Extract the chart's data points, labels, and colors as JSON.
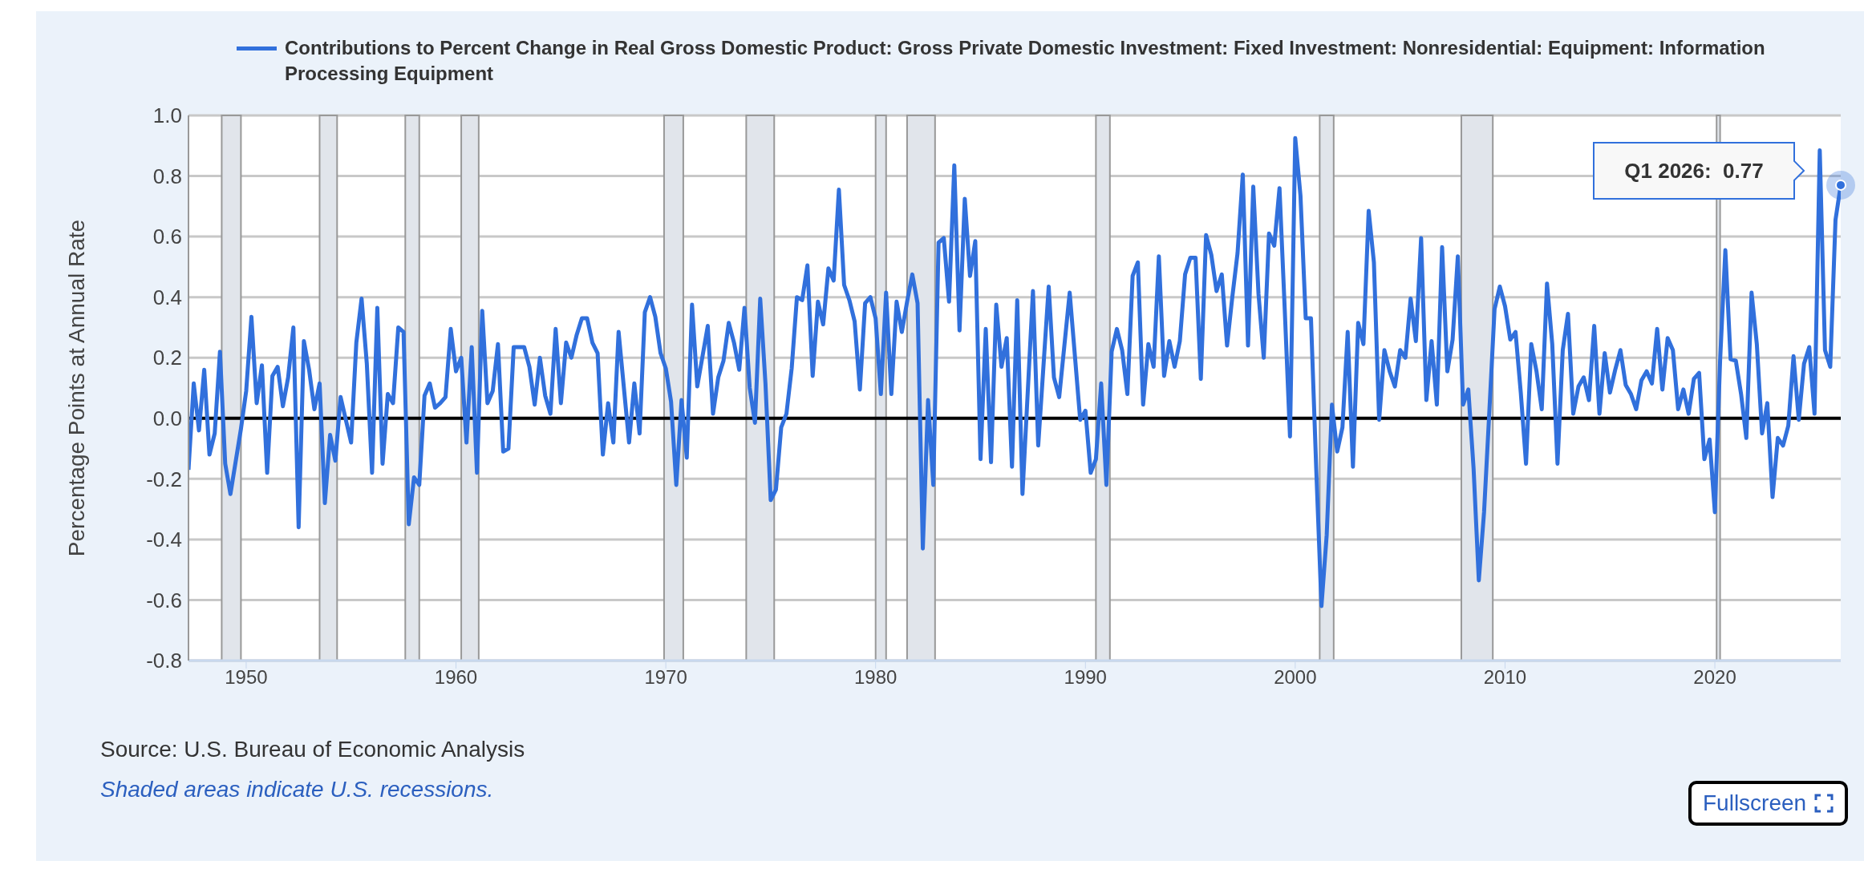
{
  "chart_data": {
    "type": "line",
    "ylabel": "Percentage Points at Annual Rate",
    "xlim": [
      "1947-04",
      "2026-01"
    ],
    "xticks": [
      "1950",
      "1960",
      "1970",
      "1980",
      "1990",
      "2000",
      "2010",
      "2020"
    ],
    "ylim": [
      -0.8,
      1.0
    ],
    "yticks": [
      {
        "value": -0.8,
        "label": "-0.8"
      },
      {
        "value": -0.6,
        "label": "-0.6"
      },
      {
        "value": -0.4,
        "label": "-0.4"
      },
      {
        "value": -0.2,
        "label": "-0.2"
      },
      {
        "value": 0,
        "label": "0.0"
      },
      {
        "value": 0.2,
        "label": "0.2"
      },
      {
        "value": 0.4,
        "label": "0.4"
      },
      {
        "value": 0.6,
        "label": "0.6"
      },
      {
        "value": 0.8,
        "label": "0.8"
      },
      {
        "value": 1.0,
        "label": "1.0"
      }
    ],
    "grid": "y",
    "legend": "top left",
    "ref_lines": [
      {
        "axis": "y",
        "value": 0,
        "color": "#000000"
      }
    ],
    "bands": [
      {
        "axis": "x",
        "from": "1948-11",
        "to": "1949-10",
        "color": "#e1e5eb"
      },
      {
        "axis": "x",
        "from": "1953-07",
        "to": "1954-05",
        "color": "#e1e5eb"
      },
      {
        "axis": "x",
        "from": "1957-08",
        "to": "1958-04",
        "color": "#e1e5eb"
      },
      {
        "axis": "x",
        "from": "1960-04",
        "to": "1961-02",
        "color": "#e1e5eb"
      },
      {
        "axis": "x",
        "from": "1969-12",
        "to": "1970-11",
        "color": "#e1e5eb"
      },
      {
        "axis": "x",
        "from": "1973-11",
        "to": "1975-03",
        "color": "#e1e5eb"
      },
      {
        "axis": "x",
        "from": "1980-01",
        "to": "1980-07",
        "color": "#e1e5eb"
      },
      {
        "axis": "x",
        "from": "1981-07",
        "to": "1982-11",
        "color": "#e1e5eb"
      },
      {
        "axis": "x",
        "from": "1990-07",
        "to": "1991-03",
        "color": "#e1e5eb"
      },
      {
        "axis": "x",
        "from": "2001-03",
        "to": "2001-11",
        "color": "#e1e5eb"
      },
      {
        "axis": "x",
        "from": "2007-12",
        "to": "2009-06",
        "color": "#e1e5eb"
      },
      {
        "axis": "x",
        "from": "2020-02",
        "to": "2020-04",
        "color": "#e1e5eb"
      }
    ],
    "annotations": [
      "Q1 2026:  0.77",
      "Source: U.S. Bureau of Economic Analysis",
      "Shaded areas indicate U.S. recessions.",
      "Fullscreen"
    ],
    "x": [
      "1947-04",
      "1947-07",
      "1947-10",
      "1948-01",
      "1948-04",
      "1948-07",
      "1948-10",
      "1949-01",
      "1949-04",
      "1949-10",
      "1950-01",
      "1950-04",
      "1950-07",
      "1950-10",
      "1951-01",
      "1951-04",
      "1951-07",
      "1951-10",
      "1952-01",
      "1952-04",
      "1952-07",
      "1952-10",
      "1953-01",
      "1953-04",
      "1953-07",
      "1953-10",
      "1954-01",
      "1954-04",
      "1954-07",
      "1955-01",
      "1955-04",
      "1955-07",
      "1955-10",
      "1956-01",
      "1956-04",
      "1956-07",
      "1956-10",
      "1957-01",
      "1957-04",
      "1957-07",
      "1957-10",
      "1958-01",
      "1958-04",
      "1958-07",
      "1958-10",
      "1959-01",
      "1959-04",
      "1959-07",
      "1959-10",
      "1960-01",
      "1960-04",
      "1960-07",
      "1960-10",
      "1961-01",
      "1961-04",
      "1961-07",
      "1961-10",
      "1962-01",
      "1962-04",
      "1962-07",
      "1962-10",
      "1963-04",
      "1963-07",
      "1963-10",
      "1964-01",
      "1964-04",
      "1964-07",
      "1964-10",
      "1965-01",
      "1965-04",
      "1965-07",
      "1965-10",
      "1966-01",
      "1966-04",
      "1966-07",
      "1966-10",
      "1967-01",
      "1967-04",
      "1967-07",
      "1967-10",
      "1968-04",
      "1968-07",
      "1968-10",
      "1969-01",
      "1969-04",
      "1969-07",
      "1969-10",
      "1970-01",
      "1970-04",
      "1970-07",
      "1970-10",
      "1971-01",
      "1971-04",
      "1971-07",
      "1972-01",
      "1972-04",
      "1972-07",
      "1972-10",
      "1973-01",
      "1973-04",
      "1973-07",
      "1973-10",
      "1974-01",
      "1974-04",
      "1974-07",
      "1974-10",
      "1975-01",
      "1975-04",
      "1975-07",
      "1975-10",
      "1976-01",
      "1976-04",
      "1976-07",
      "1976-10",
      "1977-01",
      "1977-04",
      "1977-07",
      "1977-10",
      "1978-01",
      "1978-04",
      "1978-07",
      "1978-10",
      "1979-01",
      "1979-04",
      "1979-07",
      "1979-10",
      "1980-01",
      "1980-04",
      "1980-07",
      "1980-10",
      "1981-01",
      "1981-04",
      "1981-07",
      "1981-10",
      "1982-01",
      "1982-04",
      "1982-07",
      "1982-10",
      "1983-01",
      "1983-04",
      "1983-07",
      "1983-10",
      "1984-01",
      "1984-04",
      "1984-07",
      "1984-10",
      "1985-01",
      "1985-04",
      "1985-07",
      "1985-10",
      "1986-01",
      "1986-04",
      "1986-07",
      "1986-10",
      "1987-01",
      "1987-07",
      "1987-10",
      "1988-04",
      "1988-07",
      "1988-10",
      "1989-04",
      "1989-10",
      "1990-01",
      "1990-04",
      "1990-07",
      "1990-10",
      "1991-01",
      "1991-04",
      "1991-07",
      "1991-10",
      "1992-01",
      "1992-04",
      "1992-07",
      "1992-10",
      "1993-01",
      "1993-04",
      "1993-07",
      "1993-10",
      "1994-01",
      "1994-04",
      "1994-07",
      "1994-10",
      "1995-01",
      "1995-04",
      "1995-07",
      "1995-10",
      "1996-01",
      "1996-04",
      "1996-07",
      "1996-10",
      "1997-01",
      "1997-04",
      "1997-07",
      "1997-10",
      "1998-01",
      "1998-04",
      "1998-07",
      "1998-10",
      "1999-01",
      "1999-04",
      "1999-07",
      "1999-10",
      "2000-01",
      "2000-04",
      "2000-07",
      "2000-10",
      "2001-01",
      "2001-04",
      "2001-07",
      "2001-10",
      "2002-01",
      "2002-04",
      "2002-07",
      "2002-10",
      "2003-01",
      "2003-04",
      "2003-07",
      "2003-10",
      "2004-01",
      "2004-04",
      "2004-07",
      "2004-10",
      "2005-01",
      "2005-04",
      "2005-07",
      "2005-10",
      "2006-01",
      "2006-04",
      "2006-07",
      "2006-10",
      "2007-01",
      "2007-04",
      "2007-07",
      "2007-10",
      "2008-01",
      "2008-04",
      "2008-07",
      "2008-10",
      "2009-01",
      "2009-04",
      "2009-07",
      "2009-10",
      "2010-01",
      "2010-04",
      "2010-07",
      "2010-10",
      "2011-01",
      "2011-04",
      "2011-07",
      "2011-10",
      "2012-01",
      "2012-04",
      "2012-07",
      "2012-10",
      "2013-01",
      "2013-04",
      "2013-07",
      "2013-10",
      "2014-01",
      "2014-04",
      "2014-07",
      "2014-10",
      "2015-01",
      "2015-04",
      "2015-07",
      "2015-10",
      "2016-01",
      "2016-04",
      "2016-07",
      "2016-10",
      "2017-01",
      "2017-04",
      "2017-07",
      "2017-10",
      "2018-01",
      "2018-04",
      "2018-07",
      "2018-10",
      "2019-01",
      "2019-04",
      "2019-07",
      "2019-10",
      "2020-01",
      "2020-04",
      "2020-07",
      "2020-10",
      "2021-01",
      "2021-04",
      "2021-07",
      "2021-10",
      "2022-01",
      "2022-04",
      "2022-07",
      "2022-10",
      "2023-01",
      "2023-04",
      "2023-07",
      "2023-10",
      "2024-01",
      "2024-04",
      "2024-07",
      "2024-10",
      "2025-01",
      "2025-04",
      "2025-07",
      "2025-10",
      "2026-01"
    ],
    "series": [
      {
        "name": "Contributions to Percent Change in Real Gross Domestic Product: Gross Private Domestic Investment: Fixed Investment: Nonresidential: Equipment: Information Processing Equipment",
        "color": "#3170dc",
        "values": [
          -0.17,
          0.115,
          -0.04,
          0.16,
          -0.12,
          -0.05,
          0.22,
          -0.15,
          -0.25,
          -0.035,
          0.09,
          0.335,
          0.05,
          0.175,
          -0.18,
          0.14,
          0.17,
          0.04,
          0.135,
          0.3,
          -0.36,
          0.255,
          0.16,
          0.03,
          0.115,
          -0.28,
          -0.055,
          -0.14,
          0.07,
          -0.08,
          0.25,
          0.395,
          0.18,
          -0.18,
          0.365,
          -0.15,
          0.08,
          0.05,
          0.3,
          0.285,
          -0.35,
          -0.195,
          -0.22,
          0.075,
          0.115,
          0.035,
          0.05,
          0.07,
          0.295,
          0.155,
          0.2,
          -0.08,
          0.235,
          -0.18,
          0.355,
          0.05,
          0.09,
          0.245,
          -0.11,
          -0.1,
          0.235,
          0.235,
          0.17,
          0.045,
          0.2,
          0.075,
          0.015,
          0.295,
          0.05,
          0.25,
          0.2,
          0.275,
          0.33,
          0.33,
          0.25,
          0.215,
          -0.12,
          0.05,
          -0.08,
          0.285,
          -0.08,
          0.115,
          -0.05,
          0.35,
          0.4,
          0.335,
          0.215,
          0.165,
          0.055,
          -0.22,
          0.06,
          -0.13,
          0.375,
          0.105,
          0.305,
          0.015,
          0.135,
          0.19,
          0.315,
          0.25,
          0.16,
          0.365,
          0.1,
          -0.015,
          0.395,
          0.115,
          -0.27,
          -0.235,
          -0.03,
          0.015,
          0.165,
          0.4,
          0.39,
          0.505,
          0.14,
          0.385,
          0.31,
          0.495,
          0.455,
          0.755,
          0.44,
          0.39,
          0.32,
          0.095,
          0.38,
          0.4,
          0.33,
          0.08,
          0.415,
          0.08,
          0.385,
          0.285,
          0.385,
          0.475,
          0.38,
          -0.43,
          0.06,
          -0.22,
          0.58,
          0.595,
          0.385,
          0.835,
          0.29,
          0.725,
          0.47,
          0.585,
          -0.135,
          0.295,
          -0.145,
          0.375,
          0.17,
          0.265,
          -0.16,
          0.39,
          -0.25,
          0.42,
          -0.09,
          0.435,
          0.135,
          0.07,
          0.415,
          -0.005,
          0.025,
          -0.18,
          -0.135,
          0.115,
          -0.22,
          0.22,
          0.295,
          0.225,
          0.08,
          0.47,
          0.515,
          0.045,
          0.245,
          0.17,
          0.535,
          0.14,
          0.255,
          0.17,
          0.255,
          0.475,
          0.53,
          0.53,
          0.13,
          0.605,
          0.54,
          0.42,
          0.475,
          0.24,
          0.4,
          0.545,
          0.805,
          0.24,
          0.765,
          0.41,
          0.2,
          0.61,
          0.57,
          0.76,
          0.36,
          -0.06,
          0.925,
          0.735,
          0.33,
          0.33,
          -0.165,
          -0.62,
          -0.385,
          0.045,
          -0.11,
          -0.03,
          0.285,
          -0.16,
          0.315,
          0.245,
          0.685,
          0.515,
          -0.005,
          0.225,
          0.155,
          0.105,
          0.225,
          0.2,
          0.395,
          0.255,
          0.595,
          0.06,
          0.255,
          0.045,
          0.565,
          0.155,
          0.26,
          0.535,
          0.045,
          0.095,
          -0.165,
          -0.535,
          -0.31,
          0.02,
          0.36,
          0.435,
          0.37,
          0.26,
          0.285,
          0.085,
          -0.15,
          0.245,
          0.155,
          0.03,
          0.445,
          0.245,
          -0.15,
          0.225,
          0.345,
          0.015,
          0.105,
          0.135,
          0.06,
          0.305,
          0.015,
          0.215,
          0.085,
          0.16,
          0.225,
          0.11,
          0.08,
          0.03,
          0.125,
          0.155,
          0.115,
          0.295,
          0.095,
          0.265,
          0.225,
          0.03,
          0.095,
          0.015,
          0.13,
          0.15,
          -0.135,
          -0.07,
          -0.31,
          0.19,
          0.555,
          0.195,
          0.19,
          0.08,
          -0.065,
          0.415,
          0.245,
          -0.05,
          0.05,
          -0.26,
          -0.065,
          -0.09,
          -0.025,
          0.205,
          -0.005,
          0.18,
          0.235,
          0.015,
          0.885,
          0.225,
          0.17,
          0.655,
          0.77
        ]
      }
    ]
  }
}
